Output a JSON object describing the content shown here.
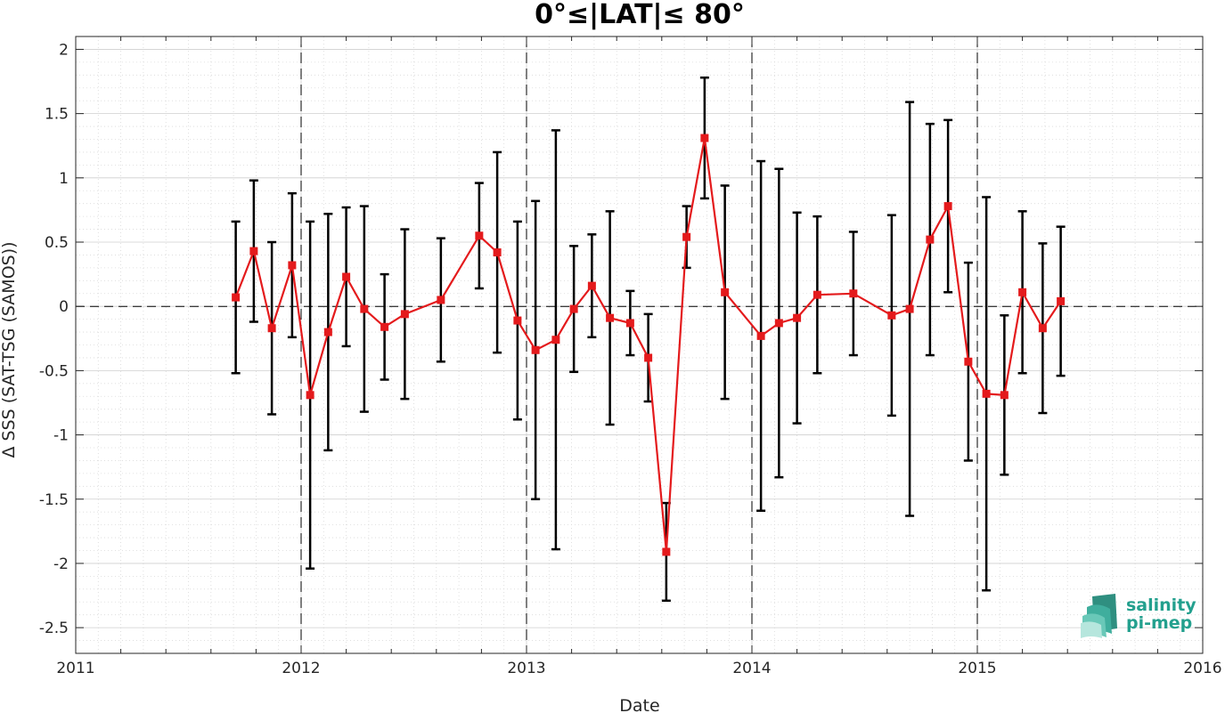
{
  "chart_data": {
    "type": "line",
    "title": "0°≤|LAT|≤ 80°",
    "xlabel": "Date",
    "ylabel": "Δ SSS (SAT-TSG (SAMOS))",
    "x_ticks": [
      "2011",
      "2012",
      "2013",
      "2014",
      "2015",
      "2016"
    ],
    "y_ticks": [
      "2",
      "1.5",
      "1",
      "0.5",
      "0",
      "-0.5",
      "-1",
      "-1.5",
      "-2",
      "-2.5"
    ],
    "xlim": [
      2011.0,
      2016.0
    ],
    "ylim": [
      -2.7,
      2.1
    ],
    "grid": true,
    "minor_grid": true,
    "year_dividers": [
      2012,
      2013,
      2014,
      2015
    ],
    "zero_line": true,
    "series": [
      {
        "x": [
          2011.71,
          2011.79,
          2011.87,
          2011.96,
          2012.04,
          2012.12,
          2012.2,
          2012.28,
          2012.37,
          2012.46,
          2012.62,
          2012.79,
          2012.87,
          2012.96,
          2013.04,
          2013.13,
          2013.21,
          2013.29,
          2013.37,
          2013.46,
          2013.54,
          2013.62,
          2013.71,
          2013.79,
          2013.88,
          2014.04,
          2014.12,
          2014.2,
          2014.29,
          2014.45,
          2014.62,
          2014.7,
          2014.79,
          2014.87,
          2014.96,
          2015.04,
          2015.12,
          2015.2,
          2015.29,
          2015.37
        ],
        "y": [
          0.07,
          0.43,
          -0.17,
          0.32,
          -0.69,
          -0.2,
          0.23,
          -0.02,
          -0.16,
          -0.06,
          0.05,
          0.55,
          0.42,
          -0.11,
          -0.34,
          -0.26,
          -0.02,
          0.16,
          -0.09,
          -0.13,
          -0.4,
          -1.91,
          0.54,
          1.31,
          0.11,
          -0.23,
          -0.13,
          -0.09,
          0.09,
          0.1,
          -0.07,
          -0.02,
          0.52,
          0.78,
          -0.43,
          -0.68,
          -0.69,
          0.11,
          -0.17,
          0.04
        ],
        "err": [
          0.59,
          0.55,
          0.67,
          0.56,
          1.35,
          0.92,
          0.54,
          0.8,
          0.41,
          0.66,
          0.48,
          0.41,
          0.78,
          0.77,
          1.16,
          1.63,
          0.49,
          0.4,
          0.83,
          0.25,
          0.34,
          0.38,
          0.24,
          0.47,
          0.83,
          1.36,
          1.2,
          0.82,
          0.61,
          0.48,
          0.78,
          1.61,
          0.9,
          0.67,
          0.77,
          1.53,
          0.62,
          0.63,
          0.66,
          0.58
        ],
        "line_color": "#e41a1c",
        "marker": "square",
        "errorbar_color": "#000000"
      }
    ]
  },
  "logo": {
    "line1": "salinity",
    "line2": "pi-mep",
    "color": "#23a08e"
  }
}
